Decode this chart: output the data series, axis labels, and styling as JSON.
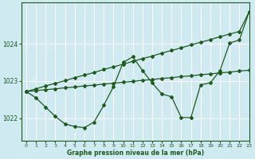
{
  "background_color": "#d0eaf2",
  "grid_color": "#ffffff",
  "line_color": "#1a5c1a",
  "xlabel": "Graphe pression niveau de la mer (hPa)",
  "xlim": [
    -0.5,
    23
  ],
  "ylim": [
    1021.4,
    1025.1
  ],
  "yticks": [
    1022,
    1023,
    1024
  ],
  "xticks": [
    0,
    1,
    2,
    3,
    4,
    5,
    6,
    7,
    8,
    9,
    10,
    11,
    12,
    13,
    14,
    15,
    16,
    17,
    18,
    19,
    20,
    21,
    22,
    23
  ],
  "series1_y": [
    1022.72,
    1022.79,
    1022.87,
    1022.94,
    1023.01,
    1023.09,
    1023.16,
    1023.23,
    1023.31,
    1023.38,
    1023.45,
    1023.53,
    1023.6,
    1023.67,
    1023.75,
    1023.82,
    1023.89,
    1023.97,
    1024.04,
    1024.11,
    1024.19,
    1024.26,
    1024.33,
    1024.85
  ],
  "series2_y": [
    1022.72,
    1022.74,
    1022.77,
    1022.79,
    1022.82,
    1022.84,
    1022.87,
    1022.89,
    1022.92,
    1022.94,
    1022.97,
    1022.99,
    1023.02,
    1023.04,
    1023.07,
    1023.09,
    1023.12,
    1023.14,
    1023.17,
    1023.19,
    1023.22,
    1023.24,
    1023.27,
    1023.29
  ],
  "series3_y": [
    1022.72,
    1022.55,
    1022.3,
    1022.05,
    1021.85,
    1021.78,
    1021.75,
    1021.9,
    1022.35,
    1022.85,
    1023.5,
    1023.65,
    1023.28,
    1022.95,
    1022.65,
    1022.58,
    1022.02,
    1022.02,
    1022.9,
    1022.95,
    1023.28,
    1024.02,
    1024.1,
    1024.85
  ]
}
